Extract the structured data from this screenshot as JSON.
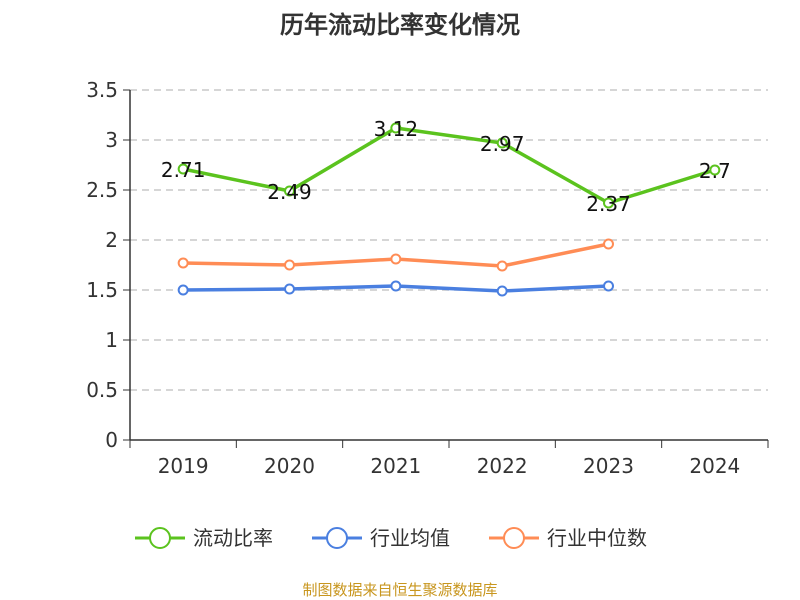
{
  "chart_data": {
    "type": "line",
    "title": "历年流动比率变化情况",
    "categories": [
      "2019",
      "2020",
      "2021",
      "2022",
      "2023",
      "2024"
    ],
    "ylim": [
      0,
      3.5
    ],
    "yticks": [
      "0",
      "0.5",
      "1",
      "1.5",
      "2",
      "2.5",
      "3",
      "3.5"
    ],
    "grid": true,
    "legend_position": "bottom",
    "series": [
      {
        "name": "流动比率",
        "color": "#5bc31e",
        "values": [
          2.71,
          2.49,
          3.12,
          2.97,
          2.37,
          2.7
        ],
        "labels": [
          "2.71",
          "2.49",
          "3.12",
          "2.97",
          "2.37",
          "2.7"
        ]
      },
      {
        "name": "行业均值",
        "color": "#4a7fe0",
        "values": [
          1.5,
          1.51,
          1.54,
          1.49,
          1.54,
          null
        ]
      },
      {
        "name": "行业中位数",
        "color": "#ff8c55",
        "values": [
          1.77,
          1.75,
          1.81,
          1.74,
          1.96,
          null
        ]
      }
    ],
    "source": "制图数据来自恒生聚源数据库"
  }
}
